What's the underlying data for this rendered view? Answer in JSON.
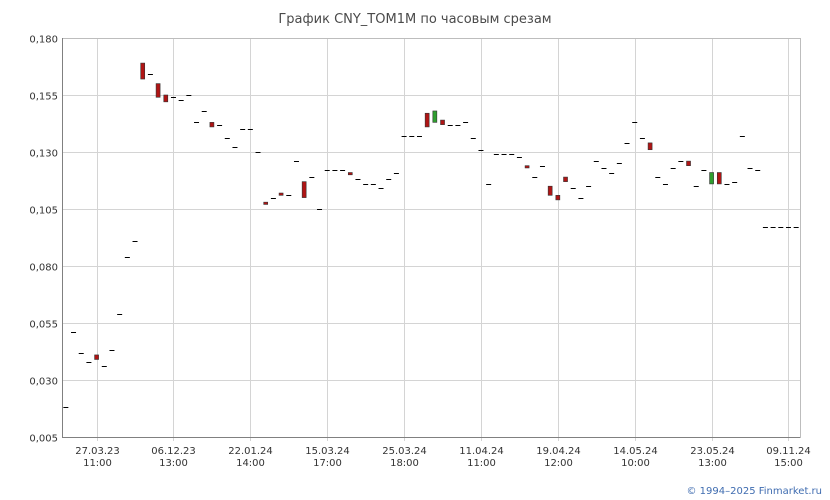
{
  "chart_data": {
    "type": "candlestick",
    "title": "График CNY_TOM1M по часовым срезам",
    "ylim": [
      0.005,
      0.18
    ],
    "y_ticks": [
      "0,005",
      "0,030",
      "0,055",
      "0,080",
      "0,105",
      "0,130",
      "0,155",
      "0,180"
    ],
    "y_tick_values": [
      0.005,
      0.03,
      0.055,
      0.08,
      0.105,
      0.13,
      0.155,
      0.18
    ],
    "x_ticks": [
      {
        "line1": "27.03.23",
        "line2": "11:00",
        "index": 4
      },
      {
        "line1": "06.12.23",
        "line2": "13:00",
        "index": 14
      },
      {
        "line1": "22.01.24",
        "line2": "14:00",
        "index": 24
      },
      {
        "line1": "15.03.24",
        "line2": "17:00",
        "index": 34
      },
      {
        "line1": "25.03.24",
        "line2": "18:00",
        "index": 44
      },
      {
        "line1": "11.04.24",
        "line2": "11:00",
        "index": 54
      },
      {
        "line1": "19.04.24",
        "line2": "12:00",
        "index": 64
      },
      {
        "line1": "14.05.24",
        "line2": "10:00",
        "index": 74
      },
      {
        "line1": "23.05.24",
        "line2": "13:00",
        "index": 84
      },
      {
        "line1": "09.11.24",
        "line2": "15:00",
        "index": 94
      }
    ],
    "x_count": 96,
    "grid": true,
    "colors": {
      "up": "#2f9e2f",
      "down": "#b01414",
      "flat": "#000000",
      "grid": "#d4d4d4"
    },
    "candles": [
      {
        "o": 0.018,
        "c": 0.018
      },
      {
        "o": 0.051,
        "c": 0.051
      },
      {
        "o": 0.042,
        "c": 0.042
      },
      {
        "o": 0.038,
        "c": 0.038
      },
      {
        "o": 0.041,
        "c": 0.039
      },
      {
        "o": 0.036,
        "c": 0.036
      },
      {
        "o": 0.043,
        "c": 0.043
      },
      {
        "o": 0.059,
        "c": 0.059
      },
      {
        "o": 0.084,
        "c": 0.084
      },
      {
        "o": 0.091,
        "c": 0.091
      },
      {
        "o": 0.169,
        "c": 0.162
      },
      {
        "o": 0.164,
        "c": 0.164
      },
      {
        "o": 0.16,
        "c": 0.154
      },
      {
        "o": 0.155,
        "c": 0.152
      },
      {
        "o": 0.154,
        "c": 0.154
      },
      {
        "o": 0.153,
        "c": 0.153
      },
      {
        "o": 0.155,
        "c": 0.155
      },
      {
        "o": 0.143,
        "c": 0.143
      },
      {
        "o": 0.148,
        "c": 0.148
      },
      {
        "o": 0.143,
        "c": 0.141
      },
      {
        "o": 0.142,
        "c": 0.142
      },
      {
        "o": 0.136,
        "c": 0.136
      },
      {
        "o": 0.132,
        "c": 0.132
      },
      {
        "o": 0.14,
        "c": 0.14
      },
      {
        "o": 0.14,
        "c": 0.14
      },
      {
        "o": 0.13,
        "c": 0.13
      },
      {
        "o": 0.108,
        "c": 0.107
      },
      {
        "o": 0.11,
        "c": 0.11
      },
      {
        "o": 0.112,
        "c": 0.111
      },
      {
        "o": 0.111,
        "c": 0.111
      },
      {
        "o": 0.126,
        "c": 0.126
      },
      {
        "o": 0.117,
        "c": 0.11
      },
      {
        "o": 0.119,
        "c": 0.119
      },
      {
        "o": 0.105,
        "c": 0.105
      },
      {
        "o": 0.122,
        "c": 0.122
      },
      {
        "o": 0.122,
        "c": 0.122
      },
      {
        "o": 0.122,
        "c": 0.122
      },
      {
        "o": 0.121,
        "c": 0.12
      },
      {
        "o": 0.118,
        "c": 0.118
      },
      {
        "o": 0.116,
        "c": 0.116
      },
      {
        "o": 0.116,
        "c": 0.116
      },
      {
        "o": 0.114,
        "c": 0.114
      },
      {
        "o": 0.118,
        "c": 0.118
      },
      {
        "o": 0.121,
        "c": 0.121
      },
      {
        "o": 0.137,
        "c": 0.137
      },
      {
        "o": 0.137,
        "c": 0.137
      },
      {
        "o": 0.137,
        "c": 0.137
      },
      {
        "o": 0.147,
        "c": 0.141
      },
      {
        "o": 0.143,
        "c": 0.148
      },
      {
        "o": 0.144,
        "c": 0.142
      },
      {
        "o": 0.142,
        "c": 0.142
      },
      {
        "o": 0.142,
        "c": 0.142
      },
      {
        "o": 0.143,
        "c": 0.143
      },
      {
        "o": 0.136,
        "c": 0.136
      },
      {
        "o": 0.131,
        "c": 0.131
      },
      {
        "o": 0.116,
        "c": 0.116
      },
      {
        "o": 0.129,
        "c": 0.129
      },
      {
        "o": 0.129,
        "c": 0.129
      },
      {
        "o": 0.129,
        "c": 0.129
      },
      {
        "o": 0.128,
        "c": 0.128
      },
      {
        "o": 0.124,
        "c": 0.123
      },
      {
        "o": 0.119,
        "c": 0.119
      },
      {
        "o": 0.124,
        "c": 0.124
      },
      {
        "o": 0.115,
        "c": 0.111
      },
      {
        "o": 0.111,
        "c": 0.109
      },
      {
        "o": 0.119,
        "c": 0.117
      },
      {
        "o": 0.114,
        "c": 0.114
      },
      {
        "o": 0.11,
        "c": 0.11
      },
      {
        "o": 0.115,
        "c": 0.115
      },
      {
        "o": 0.126,
        "c": 0.126
      },
      {
        "o": 0.123,
        "c": 0.123
      },
      {
        "o": 0.121,
        "c": 0.121
      },
      {
        "o": 0.125,
        "c": 0.125
      },
      {
        "o": 0.134,
        "c": 0.134
      },
      {
        "o": 0.143,
        "c": 0.143
      },
      {
        "o": 0.136,
        "c": 0.136
      },
      {
        "o": 0.134,
        "c": 0.131
      },
      {
        "o": 0.119,
        "c": 0.119
      },
      {
        "o": 0.116,
        "c": 0.116
      },
      {
        "o": 0.123,
        "c": 0.123
      },
      {
        "o": 0.126,
        "c": 0.126
      },
      {
        "o": 0.126,
        "c": 0.124
      },
      {
        "o": 0.115,
        "c": 0.115
      },
      {
        "o": 0.122,
        "c": 0.122
      },
      {
        "o": 0.116,
        "c": 0.121
      },
      {
        "o": 0.121,
        "c": 0.116
      },
      {
        "o": 0.116,
        "c": 0.116
      },
      {
        "o": 0.117,
        "c": 0.117
      },
      {
        "o": 0.137,
        "c": 0.137
      },
      {
        "o": 0.123,
        "c": 0.123
      },
      {
        "o": 0.122,
        "c": 0.122
      },
      {
        "o": 0.097,
        "c": 0.097
      },
      {
        "o": 0.097,
        "c": 0.097
      },
      {
        "o": 0.097,
        "c": 0.097
      },
      {
        "o": 0.097,
        "c": 0.097
      },
      {
        "o": 0.097,
        "c": 0.097
      }
    ]
  },
  "footer": {
    "copyright": "© 1994–2025 Finmarket.ru"
  }
}
